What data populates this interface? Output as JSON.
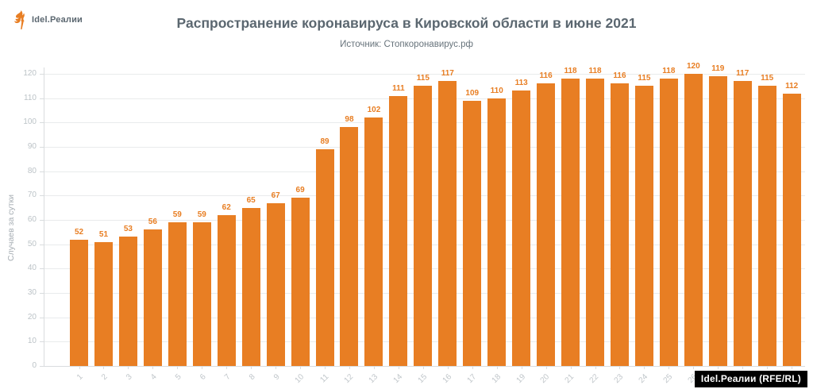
{
  "logo": {
    "text": "Idel.Реалии",
    "color": "#5b6770",
    "flame_color": "#e87e23"
  },
  "header": {
    "title": "Распространение коронавируса в Кировской области в июне 2021",
    "subtitle": "Источник: Стопкоронавирус.рф"
  },
  "chart_data": {
    "type": "bar",
    "title": "Распространение коронавируса в Кировской области в июне 2021",
    "subtitle": "Источник: Стопкоронавирус.рф",
    "categories": [
      "1",
      "2",
      "3",
      "4",
      "5",
      "6",
      "7",
      "8",
      "9",
      "10",
      "11",
      "12",
      "13",
      "14",
      "15",
      "16",
      "17",
      "18",
      "19",
      "20",
      "21",
      "22",
      "23",
      "24",
      "25",
      "26",
      "27",
      "28",
      "29",
      "30"
    ],
    "values": [
      52,
      51,
      53,
      56,
      59,
      59,
      62,
      65,
      67,
      69,
      89,
      98,
      102,
      111,
      115,
      117,
      109,
      110,
      113,
      116,
      118,
      118,
      116,
      115,
      118,
      120,
      119,
      117,
      115,
      112
    ],
    "xlabel": "",
    "ylabel": "Случаев за сутки",
    "ylim": [
      0,
      120
    ],
    "ytick_step": 10,
    "grid": true,
    "legend": false,
    "bar_color": "#e87e23",
    "value_label_color": "#e87e23"
  },
  "watermark": {
    "text": "Idel.Реалии (RFE/RL)"
  }
}
